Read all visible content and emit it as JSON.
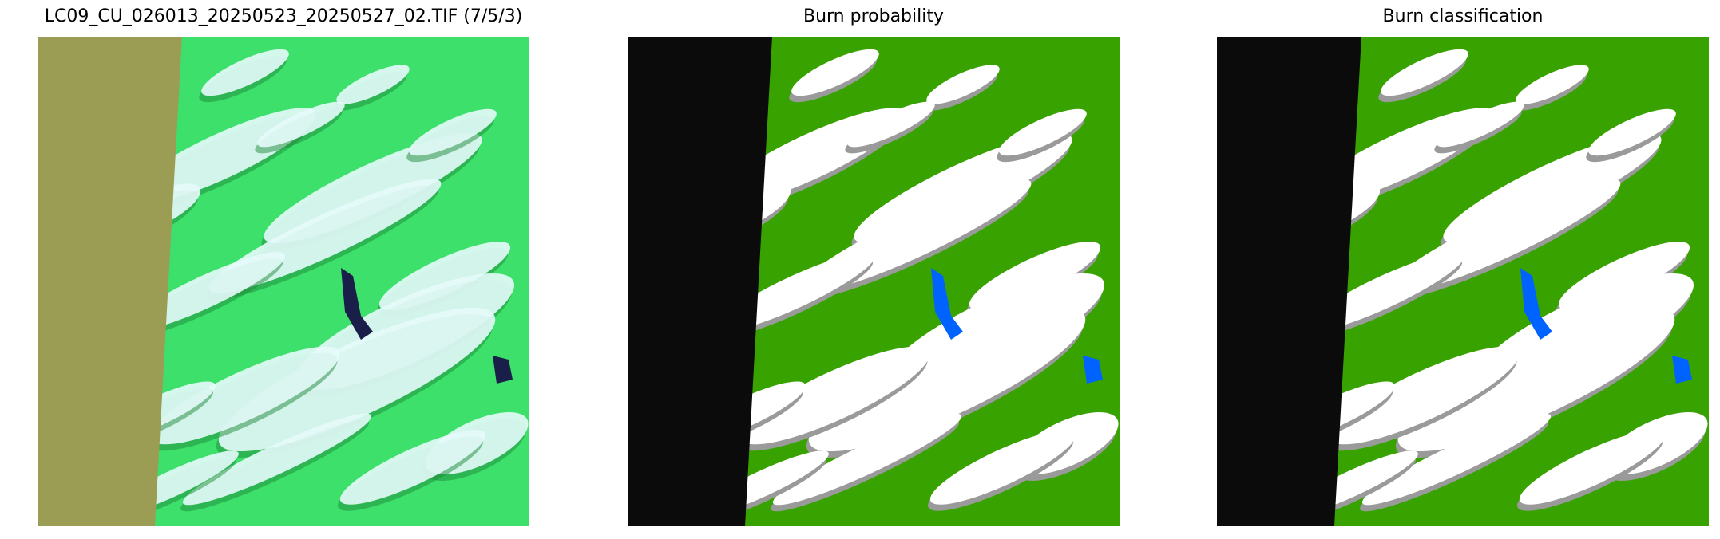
{
  "figure": {
    "panels": [
      {
        "title": "LC09_CU_026013_20250523_20250527_02.TIF (7/5/3)",
        "kind": "false-color-composite"
      },
      {
        "title": "Burn probability",
        "kind": "probability-map"
      },
      {
        "title": "Burn classification",
        "kind": "classification-map"
      }
    ]
  },
  "colors": {
    "nodata_composite": "#9b9d55",
    "nodata_map": "#0b0b0b",
    "vegetation_composite": "#3de06a",
    "cloud_composite": "#e6fbfb",
    "water_composite": "#1a1f4a",
    "vegetation_map": "#38a300",
    "cloud_map": "#ffffff",
    "shadow_map": "#9a9a9a",
    "water_map": "#0063ff"
  }
}
